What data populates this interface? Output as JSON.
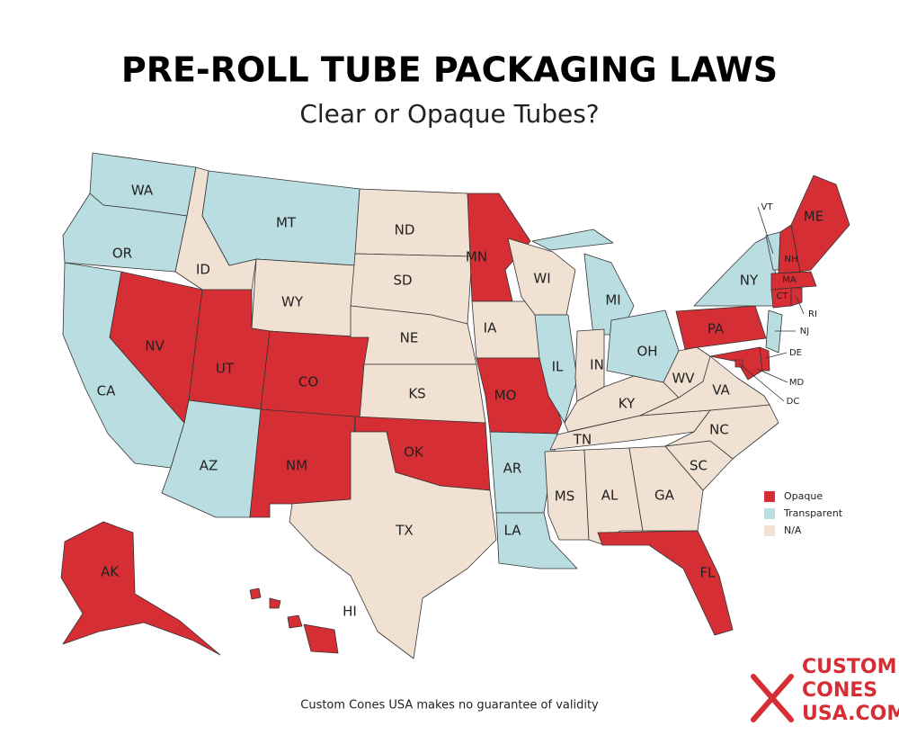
{
  "header": {
    "title": "PRE-ROLL TUBE PACKAGING LAWS",
    "subtitle": "Clear or Opaque Tubes?"
  },
  "legend": [
    {
      "label": "Opaque",
      "color": "#d62e35"
    },
    {
      "label": "Transparent",
      "color": "#b9dde0"
    },
    {
      "label": "N/A",
      "color": "#f0e1d2"
    }
  ],
  "states": [
    {
      "abbr": "WA",
      "status": "Transparent"
    },
    {
      "abbr": "OR",
      "status": "Transparent"
    },
    {
      "abbr": "CA",
      "status": "Transparent"
    },
    {
      "abbr": "NV",
      "status": "Opaque"
    },
    {
      "abbr": "ID",
      "status": "N/A"
    },
    {
      "abbr": "MT",
      "status": "Transparent"
    },
    {
      "abbr": "WY",
      "status": "N/A"
    },
    {
      "abbr": "UT",
      "status": "Opaque"
    },
    {
      "abbr": "CO",
      "status": "Opaque"
    },
    {
      "abbr": "AZ",
      "status": "Transparent"
    },
    {
      "abbr": "NM",
      "status": "Opaque"
    },
    {
      "abbr": "ND",
      "status": "N/A"
    },
    {
      "abbr": "SD",
      "status": "N/A"
    },
    {
      "abbr": "NE",
      "status": "N/A"
    },
    {
      "abbr": "KS",
      "status": "N/A"
    },
    {
      "abbr": "OK",
      "status": "Opaque"
    },
    {
      "abbr": "TX",
      "status": "N/A"
    },
    {
      "abbr": "MN",
      "status": "Opaque"
    },
    {
      "abbr": "IA",
      "status": "N/A"
    },
    {
      "abbr": "MO",
      "status": "Opaque"
    },
    {
      "abbr": "AR",
      "status": "Transparent"
    },
    {
      "abbr": "LA",
      "status": "Transparent"
    },
    {
      "abbr": "WI",
      "status": "N/A"
    },
    {
      "abbr": "IL",
      "status": "Transparent"
    },
    {
      "abbr": "MI",
      "status": "Transparent"
    },
    {
      "abbr": "IN",
      "status": "N/A"
    },
    {
      "abbr": "OH",
      "status": "Transparent"
    },
    {
      "abbr": "KY",
      "status": "N/A"
    },
    {
      "abbr": "TN",
      "status": "N/A"
    },
    {
      "abbr": "MS",
      "status": "N/A"
    },
    {
      "abbr": "AL",
      "status": "N/A"
    },
    {
      "abbr": "GA",
      "status": "N/A"
    },
    {
      "abbr": "FL",
      "status": "Opaque"
    },
    {
      "abbr": "SC",
      "status": "N/A"
    },
    {
      "abbr": "NC",
      "status": "N/A"
    },
    {
      "abbr": "VA",
      "status": "N/A"
    },
    {
      "abbr": "WV",
      "status": "N/A"
    },
    {
      "abbr": "PA",
      "status": "Opaque"
    },
    {
      "abbr": "NY",
      "status": "Transparent"
    },
    {
      "abbr": "VT",
      "status": "Transparent"
    },
    {
      "abbr": "NH",
      "status": "Opaque"
    },
    {
      "abbr": "ME",
      "status": "Opaque"
    },
    {
      "abbr": "MA",
      "status": "Opaque"
    },
    {
      "abbr": "CT",
      "status": "Opaque"
    },
    {
      "abbr": "RI",
      "status": "Opaque"
    },
    {
      "abbr": "NJ",
      "status": "Transparent"
    },
    {
      "abbr": "DE",
      "status": "Opaque"
    },
    {
      "abbr": "MD",
      "status": "Opaque"
    },
    {
      "abbr": "DC",
      "status": "Opaque"
    },
    {
      "abbr": "AK",
      "status": "Opaque"
    },
    {
      "abbr": "HI",
      "status": "Opaque"
    }
  ],
  "footer": {
    "note": "Custom Cones USA makes no guarantee of validity"
  },
  "logo": {
    "lines": [
      "CUSTOM",
      "CONES",
      "USA.COM"
    ]
  }
}
